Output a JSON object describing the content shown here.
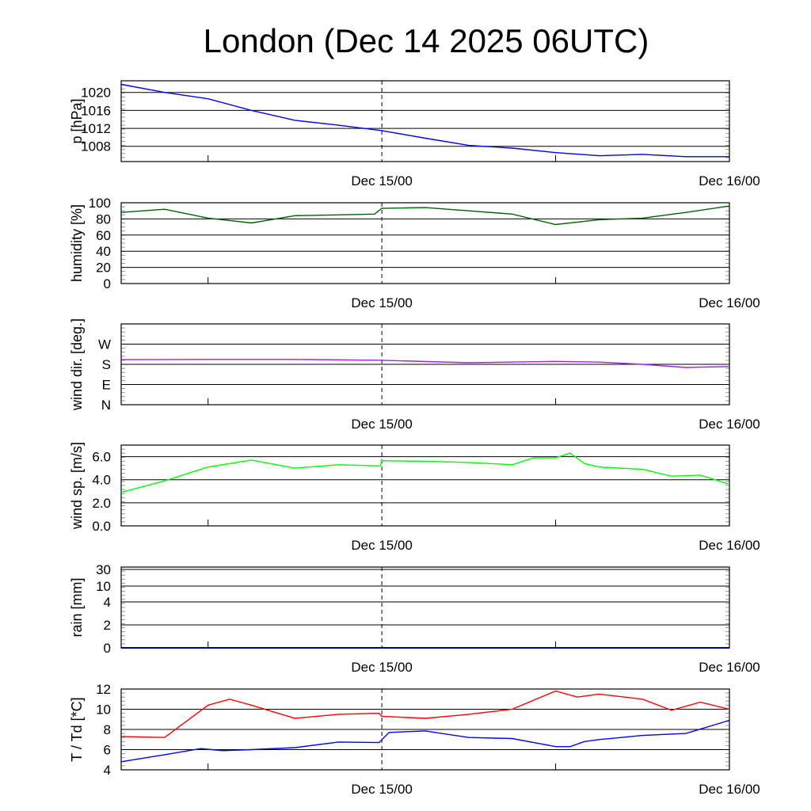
{
  "title": "London (Dec 14 2025 06UTC)",
  "chart_data": [
    {
      "type": "line",
      "name": "pressure",
      "ylabel": "p [hPa]",
      "ylim": [
        1004.6,
        1022.6
      ],
      "yticks": [
        {
          "v": 1008,
          "label": "1008"
        },
        {
          "v": 1012,
          "label": "1012"
        },
        {
          "v": 1016,
          "label": "1016"
        },
        {
          "v": 1020,
          "label": "1020"
        }
      ],
      "xlabels": [
        "Dec 15/00",
        "Dec 16/00"
      ],
      "series": [
        {
          "name": "p",
          "color": "#0000ff",
          "x": [
            0,
            3,
            6,
            9,
            12,
            15,
            18,
            21,
            24,
            27,
            30,
            33,
            36,
            39,
            42
          ],
          "values": [
            1021.8,
            1020.0,
            1018.6,
            1016.0,
            1013.8,
            1012.7,
            1011.5,
            1009.8,
            1008.2,
            1007.6,
            1006.6,
            1005.9,
            1006.2,
            1005.7,
            1005.7
          ]
        }
      ]
    },
    {
      "type": "line",
      "name": "humidity",
      "ylabel": "humidity [%]",
      "ylim": [
        0,
        100
      ],
      "yticks": [
        {
          "v": 0,
          "label": "0"
        },
        {
          "v": 20,
          "label": "20"
        },
        {
          "v": 40,
          "label": "40"
        },
        {
          "v": 60,
          "label": "60"
        },
        {
          "v": 80,
          "label": "80"
        },
        {
          "v": 100,
          "label": "100"
        }
      ],
      "xlabels": [
        "Dec 15/00",
        "Dec 16/00"
      ],
      "series": [
        {
          "name": "humidity",
          "color": "#006400",
          "x": [
            0,
            3,
            6,
            9,
            12,
            15,
            17.5,
            18,
            21,
            24,
            27,
            30,
            33,
            36,
            39,
            42
          ],
          "values": [
            88,
            92,
            81,
            75,
            84,
            85,
            86,
            93,
            94,
            90,
            86,
            73,
            79,
            81,
            88,
            96
          ]
        }
      ]
    },
    {
      "type": "line",
      "name": "wind-direction",
      "ylabel": "wind dir. [deg.]",
      "ylim": [
        0,
        360
      ],
      "yticks": [
        {
          "v": 0,
          "label": "N"
        },
        {
          "v": 90,
          "label": "E"
        },
        {
          "v": 180,
          "label": "S"
        },
        {
          "v": 270,
          "label": "W"
        }
      ],
      "xlabels": [
        "Dec 15/00",
        "Dec 16/00"
      ],
      "series": [
        {
          "name": "wind dir",
          "color": "#a020f0",
          "x": [
            0,
            6,
            12,
            18,
            24,
            30,
            33,
            36,
            39,
            42
          ],
          "values": [
            201,
            202,
            202,
            198,
            187,
            193,
            190,
            180,
            166,
            170
          ]
        }
      ]
    },
    {
      "type": "line",
      "name": "wind-speed",
      "ylabel": "wind sp. [m/s]",
      "ylim": [
        0,
        7
      ],
      "yticks": [
        {
          "v": 0,
          "label": "0.0"
        },
        {
          "v": 2,
          "label": "2.0"
        },
        {
          "v": 4,
          "label": "4.0"
        },
        {
          "v": 6,
          "label": "6.0"
        }
      ],
      "xlabels": [
        "Dec 15/00",
        "Dec 16/00"
      ],
      "series": [
        {
          "name": "wind sp",
          "color": "#00ff00",
          "x": [
            0,
            3,
            6,
            9,
            12,
            15,
            17.9,
            18,
            21,
            24,
            27,
            28.5,
            30,
            31,
            32,
            33,
            36,
            38,
            40,
            42
          ],
          "values": [
            2.9,
            3.9,
            5.1,
            5.7,
            5.0,
            5.3,
            5.2,
            5.65,
            5.6,
            5.5,
            5.3,
            5.9,
            5.9,
            6.3,
            5.4,
            5.1,
            4.9,
            4.3,
            4.4,
            3.6
          ]
        }
      ]
    },
    {
      "type": "line",
      "name": "rain",
      "ylabel": "rain [mm]",
      "ylim": [
        0,
        30
      ],
      "scale": "nonlinear",
      "yticks": [
        {
          "v": 0,
          "label": "0"
        },
        {
          "v": 2,
          "label": "2"
        },
        {
          "v": 4,
          "label": "4"
        },
        {
          "v": 10,
          "label": "10"
        },
        {
          "v": 30,
          "label": "30"
        }
      ],
      "xlabels": [
        "Dec 15/00",
        "Dec 16/00"
      ],
      "series": [
        {
          "name": "rain",
          "color": "#00008b",
          "x": [
            0,
            42
          ],
          "values": [
            0,
            0
          ]
        }
      ]
    },
    {
      "type": "line",
      "name": "temperature",
      "ylabel": "T / Td [*C]",
      "ylim": [
        4,
        12
      ],
      "yticks": [
        {
          "v": 4,
          "label": "4"
        },
        {
          "v": 6,
          "label": "6"
        },
        {
          "v": 8,
          "label": "8"
        },
        {
          "v": 10,
          "label": "10"
        },
        {
          "v": 12,
          "label": "12"
        }
      ],
      "xlabels": [
        "Dec 15/00",
        "Dec 16/00"
      ],
      "series": [
        {
          "name": "T",
          "color": "#ff0000",
          "x": [
            0,
            3,
            6,
            7.5,
            9,
            12,
            15,
            17.8,
            18,
            21,
            24,
            27,
            30,
            31.5,
            33,
            36,
            38,
            40,
            42
          ],
          "values": [
            7.3,
            7.2,
            10.4,
            11.0,
            10.4,
            9.1,
            9.5,
            9.6,
            9.3,
            9.1,
            9.5,
            10.0,
            11.8,
            11.2,
            11.5,
            11.0,
            9.9,
            10.7,
            10.0
          ]
        },
        {
          "name": "Td",
          "color": "#0000ff",
          "x": [
            0,
            3,
            5.5,
            7,
            9,
            12,
            15,
            17.8,
            18.5,
            21,
            24,
            27,
            30,
            31,
            32,
            33,
            36,
            39,
            42
          ],
          "values": [
            4.8,
            5.5,
            6.1,
            5.9,
            6.0,
            6.2,
            6.75,
            6.7,
            7.7,
            7.85,
            7.2,
            7.1,
            6.3,
            6.3,
            6.8,
            7.0,
            7.4,
            7.6,
            8.9
          ]
        }
      ]
    }
  ]
}
